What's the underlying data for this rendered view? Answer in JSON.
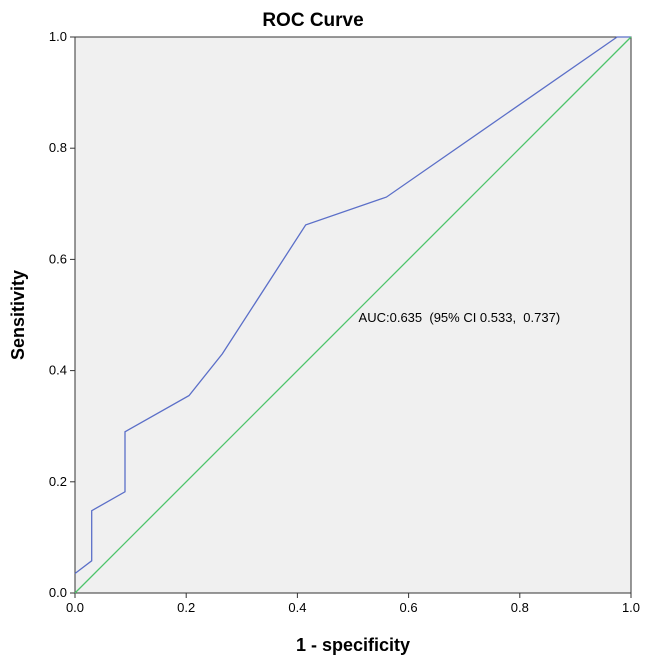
{
  "chart_data": {
    "type": "line",
    "title": "ROC Curve",
    "xlabel": "1 - specificity",
    "ylabel": "Sensitivity",
    "xlim": [
      0.0,
      1.0
    ],
    "ylim": [
      0.0,
      1.0
    ],
    "x_ticks": [
      "0.0",
      "0.2",
      "0.4",
      "0.6",
      "0.8",
      "1.0"
    ],
    "y_ticks": [
      "0.0",
      "0.2",
      "0.4",
      "0.6",
      "0.8",
      "1.0"
    ],
    "grid": false,
    "series": [
      {
        "name": "ROC",
        "color": "#5b6fc8",
        "points": [
          [
            0.0,
            0.035
          ],
          [
            0.03,
            0.058
          ],
          [
            0.03,
            0.148
          ],
          [
            0.09,
            0.182
          ],
          [
            0.09,
            0.29
          ],
          [
            0.205,
            0.355
          ],
          [
            0.265,
            0.43
          ],
          [
            0.415,
            0.662
          ],
          [
            0.56,
            0.712
          ],
          [
            0.975,
            1.0
          ],
          [
            1.0,
            1.0
          ]
        ]
      },
      {
        "name": "Reference line",
        "color": "#4dc46a",
        "points": [
          [
            0.0,
            0.0
          ],
          [
            1.0,
            1.0
          ]
        ]
      }
    ],
    "annotation": {
      "text": "AUC:0.635  (95% CI 0.533,  0.737)",
      "x": 0.51,
      "y": 0.495
    },
    "plot_background": "#f0f0f0"
  }
}
